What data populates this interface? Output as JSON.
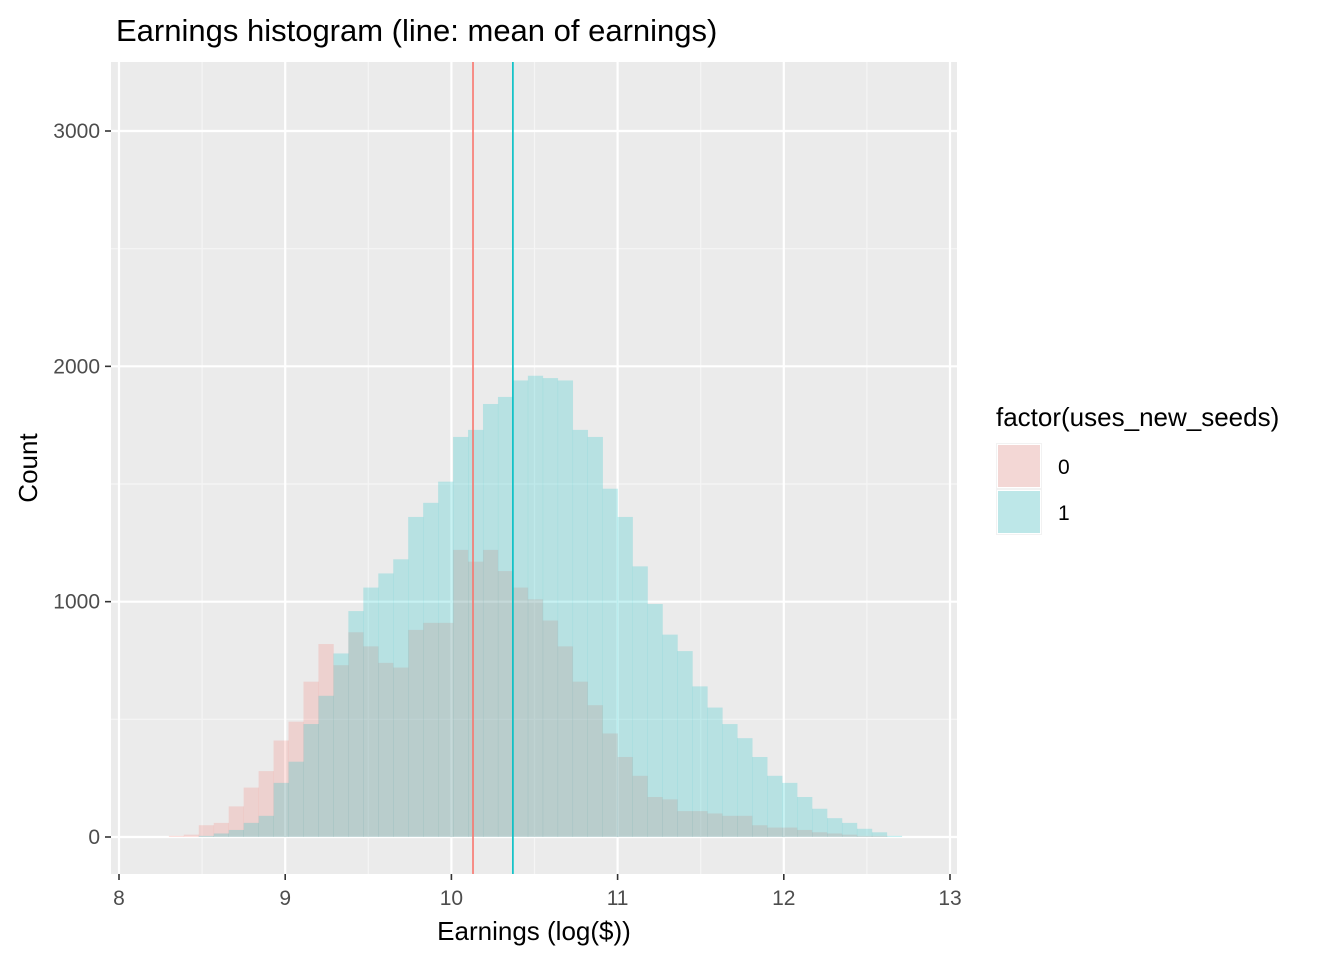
{
  "chart_data": {
    "type": "histogram",
    "title": "Earnings histogram (line: mean of earnings)",
    "xlabel": "Earnings (log($))",
    "ylabel": "Count",
    "xlim": [
      8,
      13
    ],
    "ylim": [
      0,
      3250
    ],
    "x_ticks": [
      8,
      9,
      10,
      11,
      12,
      13
    ],
    "y_ticks": [
      0,
      1000,
      2000,
      3000
    ],
    "grid": true,
    "legend": {
      "title": "factor(uses_new_seeds)",
      "position": "right",
      "entries": [
        {
          "label": "0",
          "color": "#F8766D"
        },
        {
          "label": "1",
          "color": "#00BFC4"
        }
      ]
    },
    "bin_starts": [
      8.21,
      8.3,
      8.39,
      8.48,
      8.57,
      8.66,
      8.75,
      8.84,
      8.93,
      9.02,
      9.11,
      9.2,
      9.29,
      9.38,
      9.47,
      9.56,
      9.65,
      9.74,
      9.83,
      9.92,
      10.01,
      10.1,
      10.19,
      10.28,
      10.37,
      10.46,
      10.55,
      10.64,
      10.73,
      10.82,
      10.91,
      11.0,
      11.09,
      11.18,
      11.27,
      11.36,
      11.45,
      11.54,
      11.63,
      11.72,
      11.81,
      11.9,
      11.99,
      12.08,
      12.17,
      12.26,
      12.35,
      12.44,
      12.53,
      12.62,
      12.71
    ],
    "bin_width": 0.09,
    "series": [
      {
        "name": "0",
        "color": "#F8766D",
        "values": [
          0,
          5,
          10,
          50,
          60,
          130,
          210,
          280,
          410,
          490,
          660,
          820,
          730,
          870,
          810,
          740,
          720,
          880,
          910,
          910,
          1220,
          1170,
          1220,
          1130,
          1060,
          1010,
          920,
          810,
          660,
          560,
          440,
          340,
          260,
          170,
          160,
          110,
          110,
          100,
          90,
          90,
          50,
          40,
          40,
          30,
          20,
          15,
          10,
          5,
          5,
          0,
          0
        ],
        "mean": 10.13
      },
      {
        "name": "1",
        "color": "#00BFC4",
        "values": [
          0,
          0,
          0,
          5,
          15,
          30,
          60,
          90,
          230,
          320,
          480,
          600,
          780,
          960,
          1060,
          1120,
          1180,
          1360,
          1420,
          1510,
          1700,
          1730,
          1840,
          1870,
          1940,
          1960,
          1950,
          1940,
          1730,
          1700,
          1480,
          1360,
          1150,
          990,
          860,
          790,
          640,
          550,
          480,
          420,
          340,
          260,
          230,
          170,
          120,
          80,
          60,
          35,
          20,
          5,
          0
        ],
        "mean": 10.37
      }
    ]
  }
}
